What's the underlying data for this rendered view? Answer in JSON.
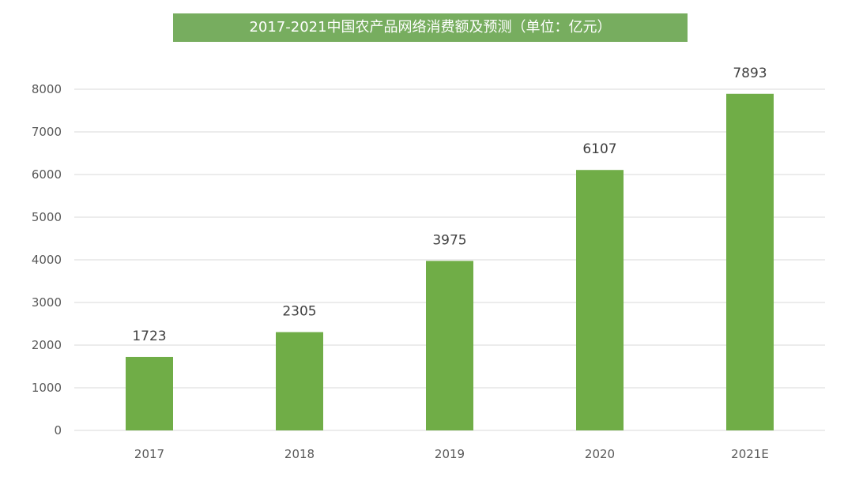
{
  "colors": {
    "title_bg": "#77ad5f",
    "bar": "#70ad47",
    "grid": "#d9d9d9",
    "text": "#595959"
  },
  "chart_data": {
    "type": "bar",
    "title": "2017-2021中国农产品网络消费额及预测（单位：亿元）",
    "categories": [
      "2017",
      "2018",
      "2019",
      "2020",
      "2021E"
    ],
    "values": [
      1723,
      2305,
      3975,
      6107,
      7893
    ],
    "ylim": [
      0,
      8000
    ],
    "yticks": [
      0,
      1000,
      2000,
      3000,
      4000,
      5000,
      6000,
      7000,
      8000
    ],
    "grid": true,
    "legend": "none",
    "data_labels": true
  }
}
